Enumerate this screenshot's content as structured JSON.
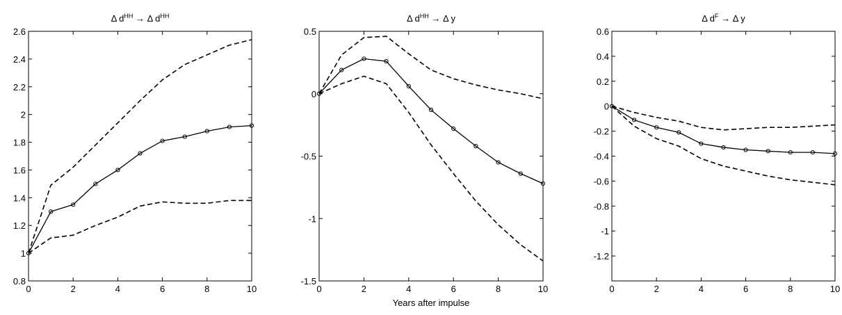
{
  "chart_data": [
    {
      "type": "line",
      "title": [
        "Δ d",
        "HH",
        " → Δ d",
        "HH"
      ],
      "x": [
        0,
        1,
        2,
        3,
        4,
        5,
        6,
        7,
        8,
        9,
        10
      ],
      "xlim": [
        0,
        10
      ],
      "xticks": [
        0,
        2,
        4,
        6,
        8,
        10
      ],
      "ylim": [
        0.8,
        2.6
      ],
      "yticks": [
        0.8,
        1,
        1.2,
        1.4,
        1.6,
        1.8,
        2,
        2.2,
        2.4,
        2.6
      ],
      "series": [
        {
          "color": "#000000",
          "line_style": "solid",
          "marker": "o",
          "values": [
            1,
            1.3,
            1.35,
            1.5,
            1.6,
            1.72,
            1.81,
            1.84,
            1.88,
            1.91,
            1.92
          ]
        },
        {
          "color": "#000000",
          "line_style": "dashed",
          "values": [
            1,
            1.49,
            1.62,
            1.78,
            1.94,
            2.1,
            2.25,
            2.36,
            2.43,
            2.5,
            2.54
          ]
        },
        {
          "color": "#000000",
          "line_style": "dashed",
          "values": [
            1,
            1.11,
            1.13,
            1.2,
            1.26,
            1.34,
            1.37,
            1.36,
            1.36,
            1.38,
            1.38
          ]
        }
      ]
    },
    {
      "type": "line",
      "title": [
        "Δ d",
        "HH",
        " → Δ y"
      ],
      "xlabel": "Years after impulse",
      "x": [
        0,
        1,
        2,
        3,
        4,
        5,
        6,
        7,
        8,
        9,
        10
      ],
      "xlim": [
        0,
        10
      ],
      "xticks": [
        0,
        2,
        4,
        6,
        8,
        10
      ],
      "ylim": [
        -1.5,
        0.5
      ],
      "yticks": [
        -1.5,
        -1,
        -0.5,
        0,
        0.5
      ],
      "series": [
        {
          "color": "#000000",
          "line_style": "solid",
          "marker": "o",
          "values": [
            0,
            0.19,
            0.28,
            0.26,
            0.06,
            -0.13,
            -0.28,
            -0.42,
            -0.55,
            -0.64,
            -0.72
          ]
        },
        {
          "color": "#000000",
          "line_style": "dashed",
          "values": [
            0,
            0.31,
            0.45,
            0.46,
            0.32,
            0.19,
            0.12,
            0.07,
            0.03,
            0,
            -0.04
          ]
        },
        {
          "color": "#000000",
          "line_style": "dashed",
          "values": [
            0,
            0.08,
            0.14,
            0.08,
            -0.15,
            -0.41,
            -0.64,
            -0.86,
            -1.05,
            -1.21,
            -1.34
          ]
        }
      ]
    },
    {
      "type": "line",
      "title": [
        "Δ d",
        "F",
        " → Δ y"
      ],
      "x": [
        0,
        1,
        2,
        3,
        4,
        5,
        6,
        7,
        8,
        9,
        10
      ],
      "xlim": [
        0,
        10
      ],
      "xticks": [
        0,
        2,
        4,
        6,
        8,
        10
      ],
      "ylim": [
        -1.4,
        0.6
      ],
      "yticks": [
        -1.2,
        -1,
        -0.8,
        -0.6,
        -0.4,
        -0.2,
        0,
        0.2,
        0.4,
        0.6
      ],
      "series": [
        {
          "color": "#000000",
          "line_style": "solid",
          "marker": "o",
          "values": [
            0,
            -0.11,
            -0.17,
            -0.21,
            -0.3,
            -0.33,
            -0.35,
            -0.36,
            -0.37,
            -0.37,
            -0.38
          ]
        },
        {
          "color": "#000000",
          "line_style": "dashed",
          "values": [
            0,
            -0.05,
            -0.09,
            -0.12,
            -0.17,
            -0.19,
            -0.18,
            -0.17,
            -0.17,
            -0.16,
            -0.15
          ]
        },
        {
          "color": "#000000",
          "line_style": "dashed",
          "values": [
            0,
            -0.16,
            -0.26,
            -0.32,
            -0.42,
            -0.48,
            -0.52,
            -0.56,
            -0.59,
            -0.61,
            -0.63
          ]
        }
      ]
    }
  ]
}
